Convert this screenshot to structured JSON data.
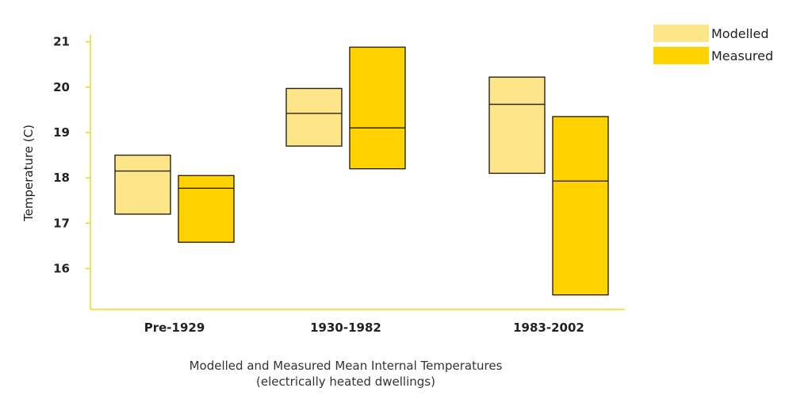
{
  "chart_data": {
    "type": "bar",
    "subtype": "floating-range-box",
    "title_line1": "Modelled and Measured Mean Internal Temperatures",
    "title_line2": "(electrically heated dwellings)",
    "xlabel": "",
    "ylabel": "Temperature (C)",
    "categories": [
      "Pre-1929",
      "1930-1982",
      "1983-2002"
    ],
    "yticks": [
      16,
      17,
      18,
      19,
      20,
      21
    ],
    "ylim": [
      15.1,
      21.15
    ],
    "grid": false,
    "legend_position": "top-right",
    "axis_color": "#F2D51E",
    "series": [
      {
        "name": "Modelled",
        "color": "#FDE68A",
        "boxes": [
          {
            "low": 17.2,
            "mid": 18.15,
            "high": 18.5
          },
          {
            "low": 18.7,
            "mid": 19.42,
            "high": 19.97
          },
          {
            "low": 18.1,
            "mid": 19.62,
            "high": 20.22
          }
        ]
      },
      {
        "name": "Measured",
        "color": "#FFD200",
        "boxes": [
          {
            "low": 16.58,
            "mid": 17.77,
            "high": 18.05
          },
          {
            "low": 18.2,
            "mid": 19.1,
            "high": 20.88
          },
          {
            "low": 15.42,
            "mid": 17.93,
            "high": 19.35
          }
        ]
      }
    ]
  }
}
